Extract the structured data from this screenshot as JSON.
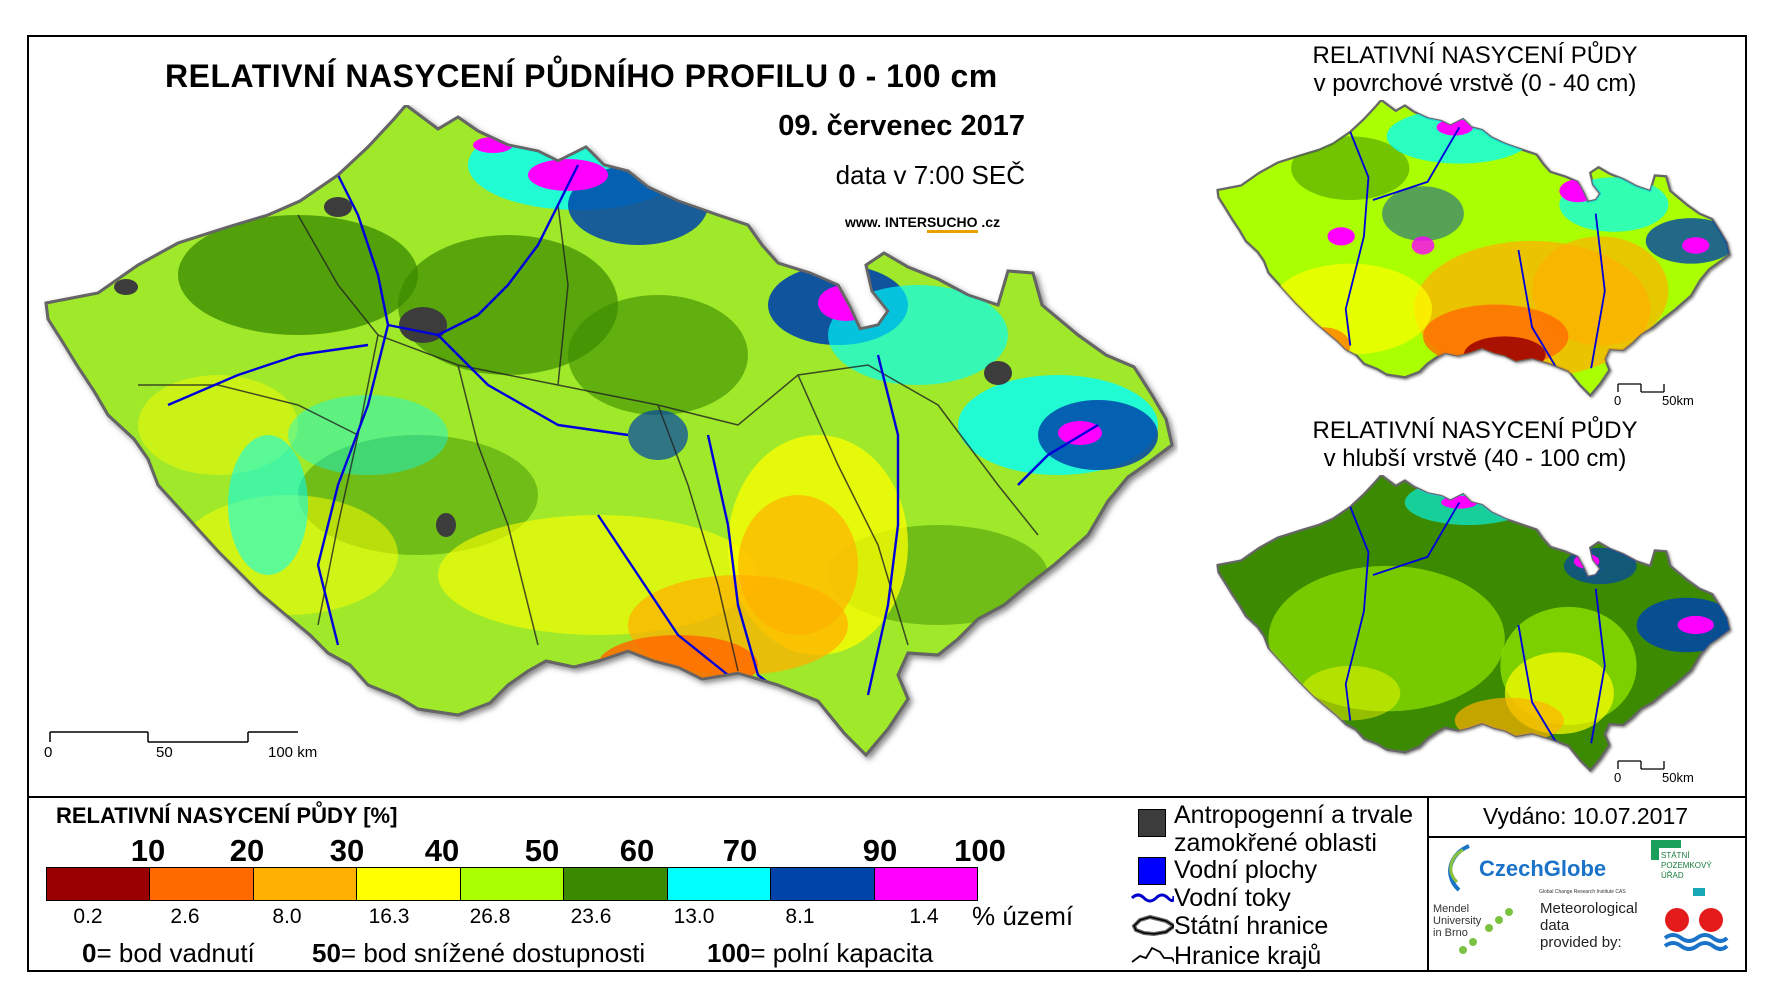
{
  "main": {
    "title": "RELATIVNÍ NASYCENÍ PŮDNÍHO PROFILU 0 - 100 cm",
    "date": "09. červenec 2017",
    "time": "data v 7:00 SEČ",
    "website_pre": "www. INTER",
    "website_mid": "SUCHO",
    "website_post": " .cz",
    "scale_labels": [
      "0",
      "50",
      "100 km"
    ]
  },
  "maps": {
    "top": {
      "title_line1": "RELATIVNÍ NASYCENÍ PŮDY",
      "title_line2": "v povrchové vrstvě (0 - 40 cm)",
      "scale_labels": [
        "0",
        "50km"
      ]
    },
    "bottom": {
      "title_line1": "RELATIVNÍ NASYCENÍ PŮDY",
      "title_line2": "v hlubší vrstvě (40 - 100 cm)",
      "scale_labels": [
        "0",
        "50km"
      ]
    }
  },
  "legend": {
    "title": "RELATIVNÍ NASYCENÍ PŮDY [%]",
    "ticks": [
      "10",
      "20",
      "30",
      "40",
      "50",
      "60",
      "70",
      "90",
      "100"
    ],
    "colors": [
      "#9a0000",
      "#ff6a00",
      "#ffb000",
      "#ffff00",
      "#aaff00",
      "#3a8a00",
      "#00ffff",
      "#0044aa",
      "#ff00ff"
    ],
    "percentages": [
      "0.2",
      "2.6",
      "8.0",
      "16.3",
      "26.8",
      "23.6",
      "13.0",
      "8.1",
      "1.4"
    ],
    "percent_unit": "% území",
    "notes": [
      {
        "value": "0",
        "text": "= bod vadnutí"
      },
      {
        "value": "50",
        "text": "= bod snížené dostupnosti"
      },
      {
        "value": "100",
        "text": "= polní kapacita"
      }
    ]
  },
  "symbols": {
    "antropogenni": "Antropogenní a trvale zamokřené oblasti",
    "antropogenni_line1": "Antropogenní a trvale",
    "antropogenni_line2": "zamokřené oblasti",
    "vodni_plochy": "Vodní plochy",
    "vodni_toky": "Vodní toky",
    "statni_hranice": "Státní hranice",
    "hranice_kraju": "Hranice krajů",
    "colors": {
      "antropogenni": "#3c3c3c",
      "vodni_plochy": "#0000ff",
      "vodni_toky": "#0000cc"
    }
  },
  "issued": "Vydáno: 10.07.2017",
  "logos": {
    "czechglobe": "CzechGlobe",
    "czechglobe_sub": "Global Change Research Institute CAS",
    "spu_line1": "STÁTNÍ",
    "spu_line2": "POZEMKOVÝ",
    "spu_line3": "ÚŘAD",
    "mendel_line1": "Mendel",
    "mendel_line2": "University",
    "mendel_line3": "in Brno",
    "meteo_line1": "Meteorological",
    "meteo_line2": "data",
    "meteo_line3": "provided by:"
  }
}
